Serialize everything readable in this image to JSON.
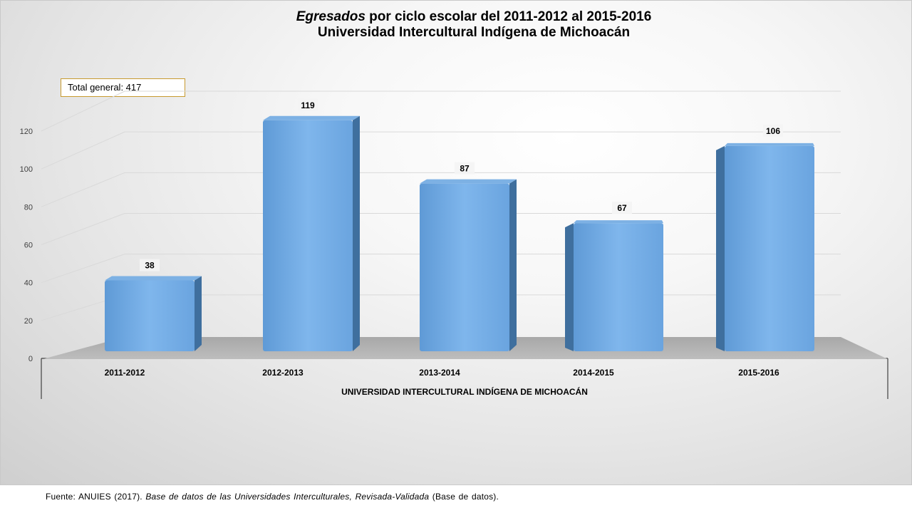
{
  "title": {
    "italic_part": "Egresados",
    "line1_rest": " por ciclo escolar del 2011-2012 al 2015-2016",
    "line2": "Universidad Intercultural Indígena de Michoacán"
  },
  "total_box": {
    "label": "Total general: 417"
  },
  "source": {
    "prefix": "Fuente:  ANUIES  (2017). ",
    "italic": "Base de datos de las Universidades  Interculturales, Revisada-Validada",
    "suffix": "  (Base de datos)."
  },
  "chart_data": {
    "type": "bar",
    "categories": [
      "2011-2012",
      "2012-2013",
      "2013-2014",
      "2014-2015",
      "2015-2016"
    ],
    "values": [
      38,
      119,
      87,
      67,
      106
    ],
    "value_labels": [
      "38",
      "119",
      "87",
      "67",
      "106"
    ],
    "xlabel": "UNIVERSIDAD INTERCULTURAL INDÍGENA DE MICHOACÁN",
    "ylabel": "",
    "ylim": [
      0,
      120
    ],
    "yticks": [
      0,
      20,
      40,
      60,
      80,
      100,
      120
    ],
    "ytick_labels": [
      "0",
      "20",
      "40",
      "60",
      "80",
      "100",
      "120"
    ],
    "grid": true,
    "bar_color": "#6fa8e0",
    "bar_side_color": "#3f6f9e",
    "floor_color": "#b3b3b3",
    "legend": "none"
  }
}
